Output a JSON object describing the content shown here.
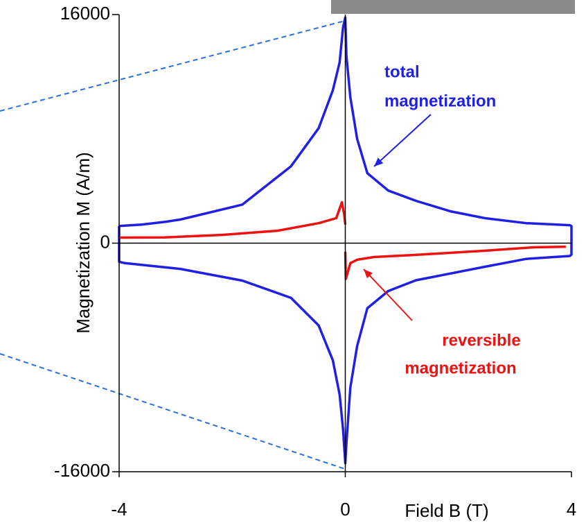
{
  "chart_data": {
    "type": "line",
    "xlabel": "Field B (T)",
    "ylabel": "Magnetization M (A/m)",
    "xlim": [
      -4,
      4
    ],
    "xticks": [
      -4,
      0,
      4
    ],
    "ylim": [
      -16000,
      16000
    ],
    "yticks": [
      -16000,
      0,
      16000
    ],
    "series": [
      {
        "color": "#1f1fe6",
        "x": [
          -4,
          -3.6,
          -3.17,
          -2.92,
          -1.82,
          -0.96,
          -0.47,
          -0.22,
          -0.1,
          -0.04,
          0,
          0.02,
          0.09,
          0.21,
          0.39,
          0.76,
          1.25,
          1.86,
          2.47,
          3.2,
          3.97,
          4,
          4,
          3.97,
          3.2,
          2.47,
          1.25,
          0.76,
          0.39,
          0.21,
          0.09,
          0.02,
          0,
          -0.04,
          -0.1,
          -0.22,
          -0.47,
          -0.96,
          -1.82,
          -2.92,
          -3.9,
          -4,
          -4
        ],
        "values": [
          1200,
          1300,
          1500,
          1650,
          2700,
          5380,
          8050,
          10700,
          12650,
          15080,
          15800,
          13100,
          10200,
          7300,
          4900,
          3680,
          2960,
          2230,
          1750,
          1400,
          1260,
          1200,
          -800,
          -900,
          -1100,
          -1650,
          -2600,
          -3350,
          -4560,
          -7200,
          -10100,
          -14000,
          -15400,
          -13000,
          -10600,
          -8200,
          -5770,
          -3830,
          -2620,
          -1800,
          -1400,
          -1300,
          1200
        ]
      },
      {
        "color": "#ee1111",
        "x": [
          -4,
          -3.2,
          -2.18,
          -1.2,
          -0.47,
          -0.16,
          -0.06,
          -0.02,
          0,
          0,
          0,
          0.01,
          0.09,
          0.21,
          0.51,
          1.25,
          2.47,
          3.33,
          3.9
        ],
        "values": [
          390,
          400,
          580,
          870,
          1400,
          1750,
          2860,
          2000,
          1300,
          null,
          -600,
          -2500,
          -1400,
          -1160,
          -970,
          -820,
          -530,
          -290,
          -250
        ]
      }
    ],
    "annotations": [
      {
        "lines": [
          "total",
          "magnetization"
        ],
        "color": "#1f1fe6"
      },
      {
        "lines": [
          "reversible",
          "magnetization"
        ],
        "color": "#ee1111"
      }
    ]
  }
}
